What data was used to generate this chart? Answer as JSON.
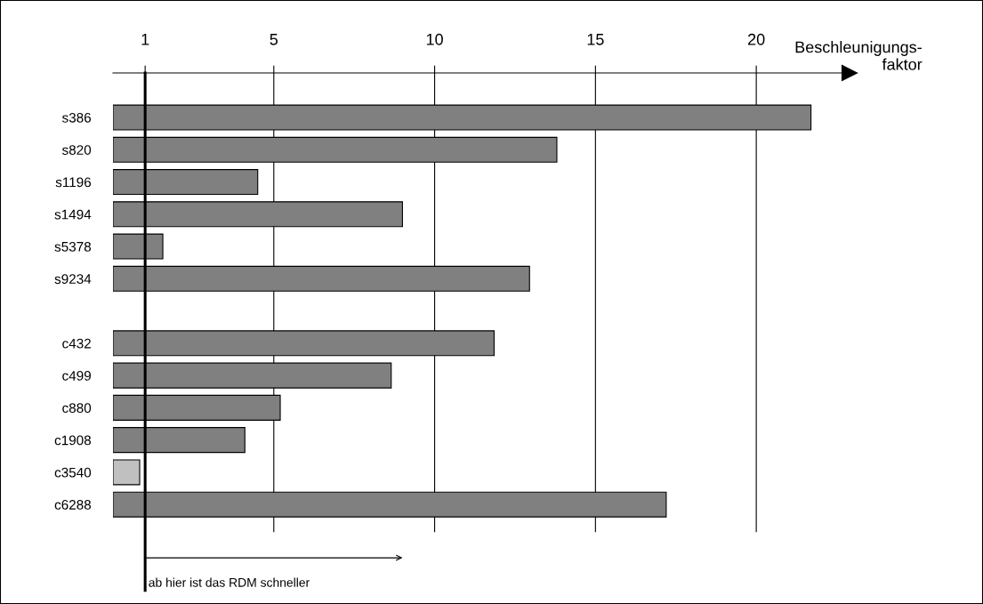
{
  "chart_data": {
    "type": "bar",
    "orientation": "horizontal",
    "xlabel": "Beschleunigungs-\nfaktor",
    "categories": [
      "s386",
      "s820",
      "s1196",
      "s1494",
      "s5378",
      "s9234",
      null,
      "c432",
      "c499",
      "c880",
      "c1908",
      "c3540",
      "c6288"
    ],
    "values": [
      21.7,
      13.8,
      4.5,
      9.0,
      1.55,
      12.95,
      null,
      11.85,
      8.65,
      5.2,
      4.1,
      0.83,
      17.2
    ],
    "colors": [
      "#808080",
      "#808080",
      "#808080",
      "#808080",
      "#808080",
      "#808080",
      null,
      "#808080",
      "#808080",
      "#808080",
      "#808080",
      "#c0c0c0",
      "#808080"
    ],
    "xlim": [
      0,
      22.9
    ],
    "xticks": [
      1,
      5,
      10,
      15,
      20
    ],
    "grid": "x",
    "ref_lines": [
      {
        "axis": "x",
        "value": 1,
        "color": "#000000"
      }
    ],
    "annotations": [
      {
        "text": "ab hier ist das RDM schneller",
        "x": 1
      }
    ]
  }
}
